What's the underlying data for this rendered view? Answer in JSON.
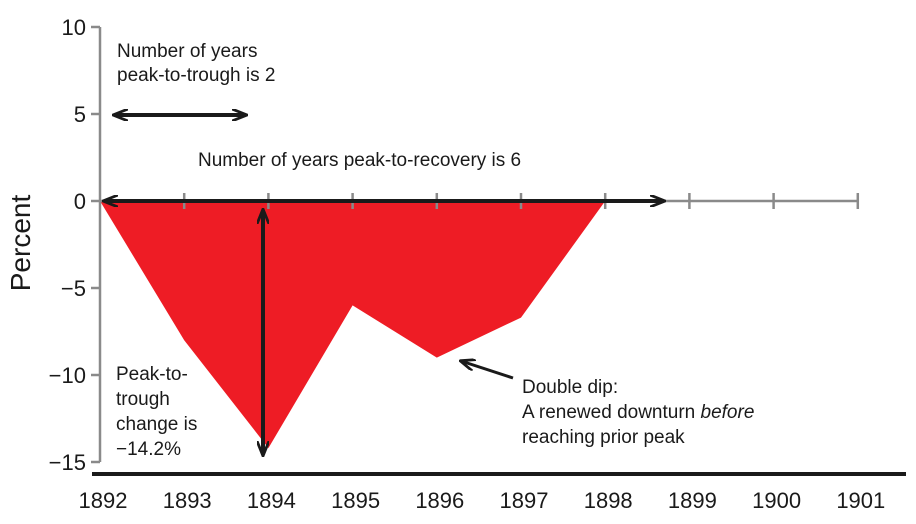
{
  "chart_data": {
    "type": "area",
    "ylabel": "Percent",
    "xlabel": "",
    "x": [
      "1892",
      "1893",
      "1894",
      "1895",
      "1896",
      "1897",
      "1898",
      "1899",
      "1900",
      "1901"
    ],
    "ylim": [
      -15,
      10
    ],
    "yticks": [
      10,
      5,
      0,
      -5,
      -10,
      -15
    ],
    "ytick_labels": [
      "10",
      "5",
      "0",
      "−5",
      "−10",
      "−15"
    ],
    "series": [
      {
        "x": [
          1892,
          1893,
          1894,
          1895,
          1896,
          1897,
          1898
        ],
        "values": [
          0,
          -8.0,
          -14.2,
          -6.0,
          -9.0,
          -6.7,
          0
        ],
        "color": "#ee1c25"
      }
    ],
    "grid": false,
    "annotations": {
      "peak_to_trough_years": [
        "Number of years",
        "peak-to-trough is 2"
      ],
      "peak_to_recovery_years": "Number of years peak-to-recovery is 6",
      "peak_to_trough_change": [
        "Peak-to-",
        "trough",
        "change is",
        "−14.2%"
      ],
      "double_dip_title": "Double dip:",
      "double_dip_line2_pre": "A renewed downturn ",
      "double_dip_line2_em": "before",
      "double_dip_line3": "reaching prior peak"
    }
  }
}
